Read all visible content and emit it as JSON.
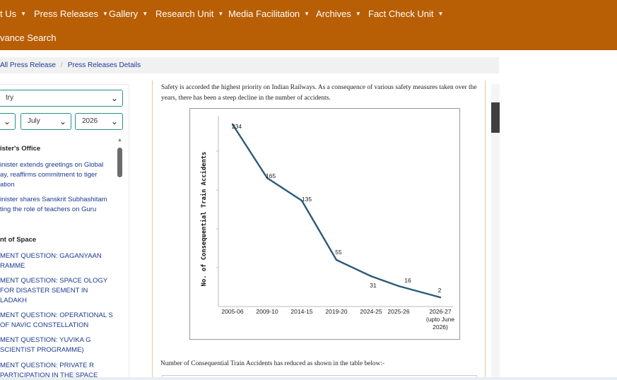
{
  "nav": {
    "items": [
      {
        "label": "t Us"
      },
      {
        "label": "Press Releases"
      },
      {
        "label": "Gallery"
      },
      {
        "label": "Research Unit"
      },
      {
        "label": "Media Facilitation"
      },
      {
        "label": "Archives"
      },
      {
        "label": "Fact Check Unit"
      }
    ],
    "advance_search": "vance Search"
  },
  "breadcrumb": {
    "all": "All Press Release",
    "current": "Press Releases Details"
  },
  "sidebar": {
    "filter_ministry": "try",
    "filter_month": "July",
    "filter_year": "2026",
    "sections": [
      {
        "heading": "ister's Office",
        "links": [
          "inister extends greetings on Global ay, reaffirms commitment to tiger ation",
          "inister shares Sanskrit Subhashitam ting the role of teachers on Guru"
        ]
      },
      {
        "heading": "nt of Space",
        "links": [
          "MENT QUESTION: GAGANYAAN RAMME",
          "MENT QUESTION: SPACE OLOGY FOR DISASTER SEMENT IN LADAKH",
          "MENT QUESTION: OPERATIONAL S OF NAVIC CONSTELLATION",
          "MENT QUESTION: YUVIKA G SCIENTIST PROGRAMME)",
          "MENT QUESTION: PRIVATE R PARTICIPATION IN THE SPACE"
        ]
      }
    ]
  },
  "content": {
    "intro": "Safety is accorded the highest priority on Indian Railways.  As a consequence of various safety measures taken over the years, there has been a steep decline in the number of accidents.",
    "table_intro": "Number of Consequential Train Accidents has reduced as shown in the table below:-"
  },
  "chart_data": {
    "type": "line",
    "ylabel": "No. of Consequential Train Accidents",
    "xlabel": "",
    "categories": [
      "2005-06",
      "2009-10",
      "2014-15",
      "2019-20",
      "2024-25",
      "2025-26",
      "2026-27 (upto June 2026)"
    ],
    "points": [
      {
        "x": "2005-06",
        "y": 234
      },
      {
        "x": "2009-10",
        "y": 165
      },
      {
        "x": "2014-15",
        "y": 135
      },
      {
        "x": "2019-20",
        "y": 55
      },
      {
        "x": "2024-25",
        "y": 31
      },
      {
        "x": "2025-26",
        "y": 16
      },
      {
        "x": "2026-27 (upto June 2026)",
        "y": 2
      }
    ],
    "x_tick_labels": [
      [
        "2005-06"
      ],
      [
        "2009-10"
      ],
      [
        "2014-15"
      ],
      [
        "2019-20"
      ],
      [
        "2024-25"
      ],
      [
        "2025-26"
      ],
      [
        "2026-27",
        "(upto June",
        "2026)"
      ]
    ],
    "ylim": [
      0,
      250
    ],
    "grid": false,
    "line_color": "#2b5a7a"
  }
}
